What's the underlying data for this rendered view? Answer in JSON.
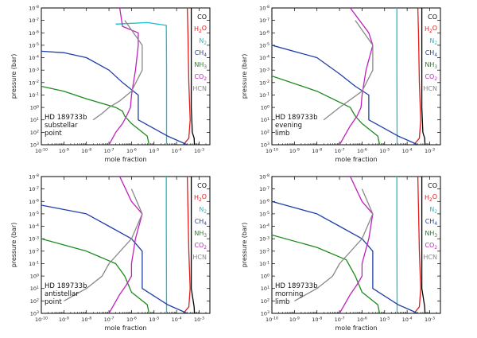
{
  "figure": {
    "xlabel": "mole fraction",
    "ylabel": "pressure (bar)",
    "x_ticks": [
      "10^-10",
      "10^-9",
      "10^-8",
      "10^-7",
      "10^-6",
      "10^-5",
      "10^-4",
      "10^-3"
    ],
    "y_ticks": [
      "10^-8",
      "10^-7",
      "10^-6",
      "10^-5",
      "10^-4",
      "10^-3",
      "10^-2",
      "10^-1",
      "10^0",
      "10^1",
      "10^2",
      "10^3"
    ],
    "legend": [
      {
        "label": "CO",
        "color": "#000000"
      },
      {
        "label": "H2O",
        "color": "#e31a1c"
      },
      {
        "label": "N2",
        "color": "#17becf"
      },
      {
        "label": "CH4",
        "color": "#1f3fa8"
      },
      {
        "label": "NH3",
        "color": "#1b8a1b"
      },
      {
        "label": "CO2",
        "color": "#c020c0"
      },
      {
        "label": "HCN",
        "color": "#888888"
      }
    ]
  },
  "panels": [
    {
      "caption": [
        "HD 189733b",
        "substellar",
        "point"
      ]
    },
    {
      "caption": [
        "HD 189733b",
        "evening",
        "limb"
      ]
    },
    {
      "caption": [
        "HD 189733b",
        "antistellar",
        "point"
      ]
    },
    {
      "caption": [
        "HD 189733b",
        "morning",
        "limb"
      ]
    }
  ],
  "chart_data": [
    {
      "type": "line",
      "title": "HD 189733b substellar point",
      "xlabel": "mole fraction",
      "ylabel": "pressure (bar)",
      "xscale": "log",
      "yscale": "log",
      "xlim": [
        1e-10,
        0.003
      ],
      "ylim": [
        1000,
        1e-08
      ],
      "series": [
        {
          "name": "CO",
          "color": "#000000",
          "style": "solid",
          "points": [
            [
              0.00045,
              1e-08
            ],
            [
              0.00045,
              1
            ],
            [
              0.0005,
              100
            ],
            [
              0.0006,
              300
            ],
            [
              0.00062,
              1000
            ]
          ]
        },
        {
          "name": "H2O",
          "color": "#e31a1c",
          "style": "solid",
          "points": [
            [
              0.0003,
              1e-08
            ],
            [
              0.00032,
              1e-06
            ],
            [
              0.00035,
              0.01
            ],
            [
              0.0004,
              10
            ],
            [
              0.00035,
              300
            ],
            [
              0.0002,
              1000
            ]
          ]
        },
        {
          "name": "N2",
          "color": "#17becf",
          "style": "solid",
          "points": [
            [
              2e-07,
              2e-07
            ],
            [
              5e-06,
              1.5e-07
            ],
            [
              3.5e-05,
              2.5e-07
            ],
            [
              3.6e-05,
              0.001
            ],
            [
              3.6e-05,
              1000
            ]
          ]
        },
        {
          "name": "CH4",
          "color": "#1f3fa8",
          "style": "solid",
          "points": [
            [
              1e-10,
              3e-05
            ],
            [
              1e-09,
              4e-05
            ],
            [
              1e-08,
              0.0001
            ],
            [
              1e-07,
              0.001
            ],
            [
              4e-07,
              0.01
            ],
            [
              2e-06,
              0.1
            ],
            [
              2e-06,
              10
            ],
            [
              4e-05,
              200
            ],
            [
              0.0003,
              1000
            ]
          ]
        },
        {
          "name": "NH3",
          "color": "#1b8a1b",
          "style": "solid",
          "points": [
            [
              1e-10,
              0.02
            ],
            [
              1e-09,
              0.05
            ],
            [
              1e-08,
              0.2
            ],
            [
              2e-07,
              1
            ],
            [
              4e-07,
              2
            ],
            [
              5e-07,
              5
            ],
            [
              1e-06,
              20
            ],
            [
              5e-06,
              200
            ],
            [
              6e-06,
              1000
            ]
          ]
        },
        {
          "name": "CO2",
          "color": "#c020c0",
          "style": "solid",
          "points": [
            [
              1e-07,
              1000
            ],
            [
              2e-07,
              100
            ],
            [
              4e-07,
              20
            ],
            [
              6e-07,
              5
            ],
            [
              9e-07,
              1
            ],
            [
              1e-06,
              0.1
            ],
            [
              1.5e-06,
              0.001
            ],
            [
              2e-06,
              1e-05
            ],
            [
              2e-06,
              1e-06
            ],
            [
              4e-07,
              3e-07
            ],
            [
              3e-07,
              1e-08
            ]
          ]
        },
        {
          "name": "HCN",
          "color": "#888888",
          "style": "solid",
          "points": [
            [
              2e-08,
              10
            ],
            [
              5e-08,
              3
            ],
            [
              1e-07,
              1
            ],
            [
              3e-07,
              0.3
            ],
            [
              1e-06,
              0.05
            ],
            [
              3e-06,
              0.001
            ],
            [
              3e-06,
              1e-05
            ],
            [
              5e-07,
              1e-07
            ]
          ]
        }
      ]
    },
    {
      "type": "line",
      "title": "HD 189733b evening limb",
      "xlabel": "mole fraction",
      "ylabel": "pressure (bar)",
      "xscale": "log",
      "yscale": "log",
      "xlim": [
        1e-10,
        0.003
      ],
      "ylim": [
        1000,
        1e-08
      ],
      "series": [
        {
          "name": "CO",
          "color": "#000000",
          "style": "solid",
          "points": [
            [
              0.00045,
              1e-08
            ],
            [
              0.00045,
              1
            ],
            [
              0.0005,
              100
            ],
            [
              0.0006,
              300
            ],
            [
              0.00062,
              1000
            ]
          ]
        },
        {
          "name": "H2O",
          "color": "#e31a1c",
          "style": "solid",
          "points": [
            [
              0.0003,
              1e-08
            ],
            [
              0.00032,
              1e-06
            ],
            [
              0.00035,
              0.01
            ],
            [
              0.0004,
              10
            ],
            [
              0.00035,
              300
            ],
            [
              0.0002,
              1000
            ]
          ]
        },
        {
          "name": "N2",
          "color": "#17becf",
          "style": "solid",
          "points": [
            [
              3.5e-05,
              1e-08
            ],
            [
              3.5e-05,
              0.0001
            ],
            [
              3.6e-05,
              1000
            ]
          ]
        },
        {
          "name": "CH4",
          "color": "#1f3fa8",
          "style": "solid",
          "points": [
            [
              1e-10,
              1e-05
            ],
            [
              1e-08,
              0.0001
            ],
            [
              1e-07,
              0.002
            ],
            [
              5e-07,
              0.02
            ],
            [
              2e-06,
              0.1
            ],
            [
              2e-06,
              10
            ],
            [
              4e-05,
              200
            ],
            [
              0.0003,
              1000
            ]
          ]
        },
        {
          "name": "NH3",
          "color": "#1b8a1b",
          "style": "solid",
          "points": [
            [
              1e-10,
              0.003
            ],
            [
              1e-08,
              0.05
            ],
            [
              3e-07,
              1
            ],
            [
              5e-07,
              5
            ],
            [
              1e-06,
              20
            ],
            [
              5e-06,
              200
            ],
            [
              6e-06,
              1000
            ]
          ]
        },
        {
          "name": "CO2",
          "color": "#c020c0",
          "style": "solid",
          "points": [
            [
              1e-07,
              1000
            ],
            [
              3e-07,
              30
            ],
            [
              6e-07,
              5
            ],
            [
              9e-07,
              1
            ],
            [
              1e-06,
              0.1
            ],
            [
              1.5e-06,
              0.001
            ],
            [
              3e-06,
              1e-05
            ],
            [
              2e-06,
              1e-06
            ],
            [
              3e-07,
              1e-08
            ]
          ]
        },
        {
          "name": "HCN",
          "color": "#888888",
          "style": "solid",
          "points": [
            [
              2e-08,
              10
            ],
            [
              1e-07,
              1
            ],
            [
              1e-06,
              0.05
            ],
            [
              3e-06,
              0.001
            ],
            [
              3e-06,
              1e-05
            ],
            [
              5e-07,
              1e-07
            ]
          ]
        }
      ]
    },
    {
      "type": "line",
      "title": "HD 189733b antistellar point",
      "xlabel": "mole fraction",
      "ylabel": "pressure (bar)",
      "xscale": "log",
      "yscale": "log",
      "xlim": [
        1e-10,
        0.003
      ],
      "ylim": [
        1000,
        1e-08
      ],
      "series": [
        {
          "name": "CO",
          "color": "#000000",
          "style": "solid",
          "points": [
            [
              0.00045,
              1e-08
            ],
            [
              0.00045,
              10
            ],
            [
              0.0006,
              300
            ],
            [
              0.00062,
              1000
            ]
          ]
        },
        {
          "name": "H2O",
          "color": "#e31a1c",
          "style": "solid",
          "points": [
            [
              0.0003,
              1e-08
            ],
            [
              0.00035,
              0.01
            ],
            [
              0.0004,
              10
            ],
            [
              0.00035,
              300
            ],
            [
              0.0002,
              1000
            ]
          ]
        },
        {
          "name": "N2",
          "color": "#17becf",
          "style": "solid",
          "points": [
            [
              3.5e-05,
              1e-08
            ],
            [
              3.5e-05,
              0.0001
            ],
            [
              3.6e-05,
              1000
            ]
          ]
        },
        {
          "name": "CH4",
          "color": "#1f3fa8",
          "style": "solid",
          "points": [
            [
              1e-10,
              2e-06
            ],
            [
              1e-08,
              1e-05
            ],
            [
              1e-07,
              0.0001
            ],
            [
              1e-06,
              0.001
            ],
            [
              3e-06,
              0.01
            ],
            [
              3e-06,
              10
            ],
            [
              4e-05,
              200
            ],
            [
              0.0003,
              1000
            ]
          ]
        },
        {
          "name": "NH3",
          "color": "#1b8a1b",
          "style": "solid",
          "points": [
            [
              1e-10,
              0.001
            ],
            [
              1e-08,
              0.01
            ],
            [
              2e-07,
              0.1
            ],
            [
              5e-07,
              1
            ],
            [
              1e-06,
              20
            ],
            [
              5e-06,
              200
            ],
            [
              6e-06,
              1000
            ]
          ]
        },
        {
          "name": "CO2",
          "color": "#c020c0",
          "style": "solid",
          "points": [
            [
              1e-07,
              1000
            ],
            [
              3e-07,
              30
            ],
            [
              6e-07,
              5
            ],
            [
              1e-06,
              1
            ],
            [
              1e-06,
              0.1
            ],
            [
              1.5e-06,
              0.001
            ],
            [
              3e-06,
              1e-05
            ],
            [
              1e-06,
              1e-06
            ],
            [
              3e-07,
              1e-08
            ]
          ]
        },
        {
          "name": "HCN",
          "color": "#888888",
          "style": "solid",
          "points": [
            [
              1e-09,
              100
            ],
            [
              1e-08,
              10
            ],
            [
              5e-08,
              1
            ],
            [
              1e-07,
              0.1
            ],
            [
              1e-06,
              0.001
            ],
            [
              3e-06,
              1e-05
            ],
            [
              1e-06,
              1e-07
            ]
          ]
        }
      ]
    },
    {
      "type": "line",
      "title": "HD 189733b morning limb",
      "xlabel": "mole fraction",
      "ylabel": "pressure (bar)",
      "xscale": "log",
      "yscale": "log",
      "xlim": [
        1e-10,
        0.003
      ],
      "ylim": [
        1000,
        1e-08
      ],
      "series": [
        {
          "name": "CO",
          "color": "#000000",
          "style": "solid",
          "points": [
            [
              0.00045,
              1e-08
            ],
            [
              0.00045,
              10
            ],
            [
              0.0006,
              300
            ],
            [
              0.00062,
              1000
            ]
          ]
        },
        {
          "name": "H2O",
          "color": "#e31a1c",
          "style": "solid",
          "points": [
            [
              0.0003,
              1e-08
            ],
            [
              0.00035,
              0.01
            ],
            [
              0.0004,
              10
            ],
            [
              0.00035,
              300
            ],
            [
              0.0002,
              1000
            ]
          ]
        },
        {
          "name": "N2",
          "color": "#17becf",
          "style": "solid",
          "points": [
            [
              3.5e-05,
              1e-08
            ],
            [
              3.5e-05,
              0.0001
            ],
            [
              3.6e-05,
              1000
            ]
          ]
        },
        {
          "name": "CH4",
          "color": "#1f3fa8",
          "style": "solid",
          "points": [
            [
              1e-10,
              1e-06
            ],
            [
              1e-08,
              1e-05
            ],
            [
              1e-07,
              0.0001
            ],
            [
              1e-06,
              0.001
            ],
            [
              3e-06,
              0.01
            ],
            [
              3e-06,
              10
            ],
            [
              4e-05,
              200
            ],
            [
              0.0003,
              1000
            ]
          ]
        },
        {
          "name": "NH3",
          "color": "#1b8a1b",
          "style": "solid",
          "points": [
            [
              1e-10,
              0.0005
            ],
            [
              1e-08,
              0.005
            ],
            [
              2e-07,
              0.05
            ],
            [
              5e-07,
              1
            ],
            [
              1e-06,
              20
            ],
            [
              5e-06,
              200
            ],
            [
              6e-06,
              1000
            ]
          ]
        },
        {
          "name": "CO2",
          "color": "#c020c0",
          "style": "solid",
          "points": [
            [
              1e-07,
              1000
            ],
            [
              3e-07,
              30
            ],
            [
              6e-07,
              5
            ],
            [
              1e-06,
              1
            ],
            [
              1e-06,
              0.1
            ],
            [
              2e-06,
              0.001
            ],
            [
              3e-06,
              1e-05
            ],
            [
              1e-06,
              1e-06
            ],
            [
              3e-07,
              1e-08
            ]
          ]
        },
        {
          "name": "HCN",
          "color": "#888888",
          "style": "solid",
          "points": [
            [
              1e-09,
              100
            ],
            [
              1e-08,
              10
            ],
            [
              5e-08,
              1
            ],
            [
              1e-07,
              0.1
            ],
            [
              1e-06,
              0.001
            ],
            [
              3e-06,
              1e-05
            ],
            [
              1e-06,
              1e-07
            ]
          ]
        }
      ]
    }
  ]
}
